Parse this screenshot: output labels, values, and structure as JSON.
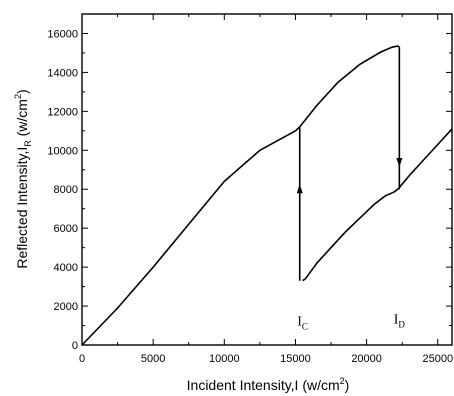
{
  "chart_data": {
    "type": "line",
    "xlabel": "Incident Intensity,I (w/cm",
    "xlabel_sup": "2",
    "xlabel_end": ")",
    "ylabel": "Reflected Intensity,I",
    "ylabel_sub": "R",
    "ylabel_units": " (w/cm",
    "ylabel_sup": "2",
    "ylabel_end": ")",
    "xlim": [
      0,
      26000
    ],
    "ylim": [
      0,
      17000
    ],
    "xticks": [
      0,
      5000,
      10000,
      15000,
      20000,
      25000
    ],
    "yticks": [
      0,
      2000,
      4000,
      6000,
      8000,
      10000,
      12000,
      14000,
      16000
    ],
    "grid": false,
    "series": [
      {
        "style": "solid",
        "x": [
          0,
          2500,
          5000,
          7500,
          10000,
          12500,
          15000,
          15300
        ],
        "y": [
          0,
          1900,
          4000,
          6200,
          8400,
          10000,
          11000,
          11200
        ]
      },
      {
        "style": "solid",
        "x": [
          15500,
          15700,
          16500,
          17500,
          18500,
          19500,
          20500,
          21300,
          21900,
          22200
        ],
        "y": [
          3300,
          3400,
          4200,
          5000,
          5800,
          6500,
          7200,
          7650,
          7850,
          8000
        ]
      },
      {
        "style": "solid",
        "x": [
          15300,
          16500,
          18000,
          19500,
          21000,
          21800,
          22200,
          22300
        ],
        "y": [
          11200,
          12300,
          13500,
          14400,
          15050,
          15300,
          15350,
          15300
        ]
      },
      {
        "style": "solid",
        "x": [
          22200,
          23000,
          24000,
          25000,
          26000
        ],
        "y": [
          8000,
          8700,
          9500,
          10300,
          11100
        ]
      }
    ],
    "transitions": [
      {
        "x": 15300,
        "y_from": 3300,
        "y_to": 11200,
        "direction": "up",
        "arrow_at": 8000
      },
      {
        "x": 22300,
        "y_from": 15300,
        "y_to": 8000,
        "direction": "down",
        "arrow_at": 9400
      }
    ],
    "annotations": [
      {
        "main": "I",
        "sub": "C",
        "x": 15500,
        "y": 1000
      },
      {
        "main": "I",
        "sub": "D",
        "x": 22300,
        "y": 1100
      }
    ]
  }
}
